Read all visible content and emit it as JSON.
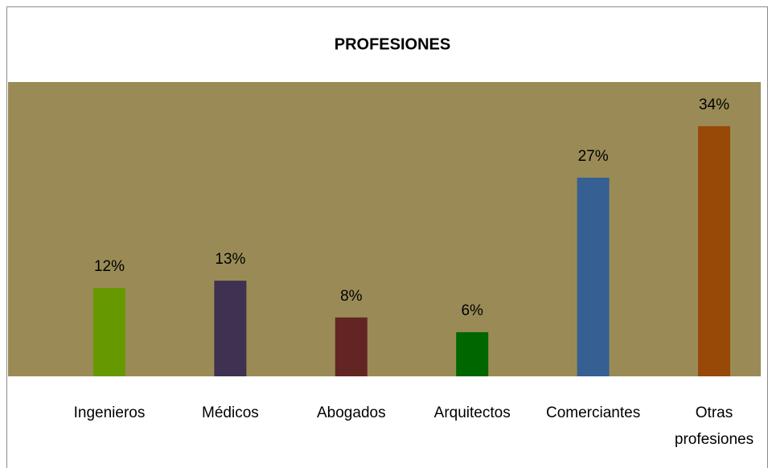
{
  "chart_data": {
    "type": "bar",
    "title": "PROFESIONES",
    "categories": [
      "Ingenieros",
      "Médicos",
      "Abogados",
      "Arquitectos",
      "Comerciantes",
      "Otras profesiones"
    ],
    "values": [
      12,
      13,
      8,
      6,
      27,
      34
    ],
    "value_labels": [
      "12%",
      "13%",
      "8%",
      "6%",
      "27%",
      "34%"
    ],
    "colors": [
      "#669900",
      "#3f3151",
      "#632523",
      "#006600",
      "#366092",
      "#984807"
    ],
    "plot_background": "#9a8b56",
    "ylim": [
      0,
      40
    ]
  }
}
